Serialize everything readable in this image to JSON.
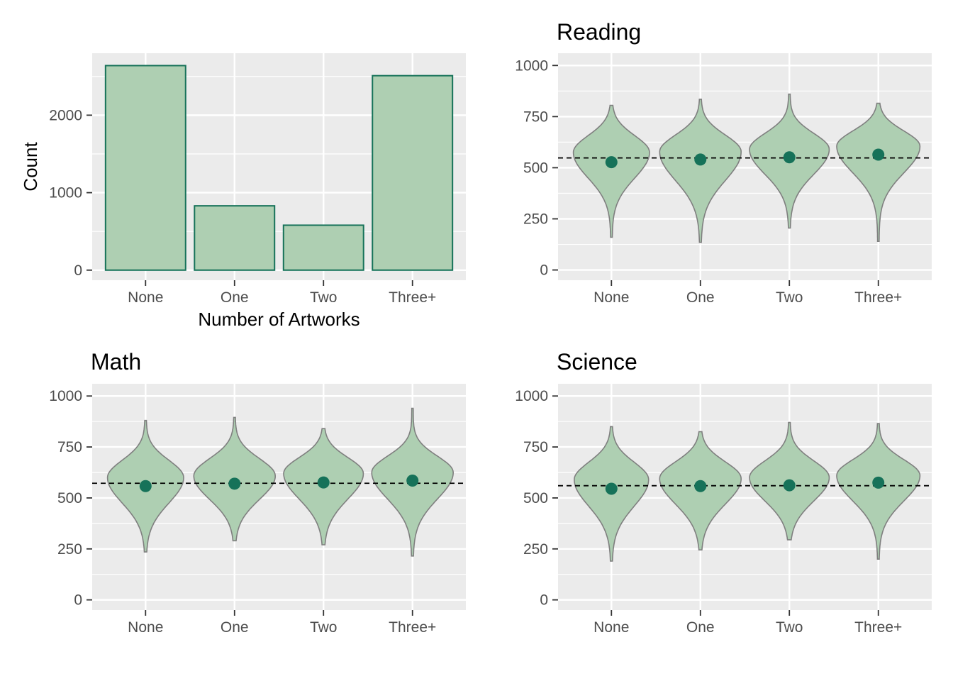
{
  "colors": {
    "panel_bg": "#ebebeb",
    "grid": "#ffffff",
    "fill": "#aecfb2",
    "bar_stroke": "#167259",
    "violin_stroke": "#7f7f7f",
    "mean_dot": "#167259",
    "ref_line": "#000000",
    "tick": "#333333"
  },
  "chart_data": [
    {
      "type": "bar",
      "title": "",
      "xlabel": "Number of Artworks",
      "ylabel": "Count",
      "categories": [
        "None",
        "One",
        "Two",
        "Three+"
      ],
      "values": [
        2640,
        830,
        580,
        2510
      ],
      "ylim": [
        -130,
        2800
      ],
      "yticks": [
        0,
        1000,
        2000
      ],
      "ytick_labels": [
        "0",
        "1000",
        "2000"
      ],
      "grid": true
    },
    {
      "type": "violin",
      "title": "Reading",
      "xlabel": "",
      "ylabel": "",
      "categories": [
        "None",
        "One",
        "Two",
        "Three+"
      ],
      "ylim": [
        -50,
        1060
      ],
      "yticks": [
        0,
        250,
        500,
        750,
        1000
      ],
      "ytick_labels": [
        "0",
        "250",
        "500",
        "750",
        "1000"
      ],
      "reference_line": 548,
      "series": [
        {
          "category": "None",
          "mean": 527,
          "min": 160,
          "max": 805,
          "mode": 575,
          "half_width": 0.42,
          "sd": [
            125,
            82
          ]
        },
        {
          "category": "One",
          "mean": 540,
          "min": 135,
          "max": 835,
          "mode": 578,
          "half_width": 0.45,
          "sd": [
            140,
            82
          ]
        },
        {
          "category": "Two",
          "mean": 551,
          "min": 205,
          "max": 860,
          "mode": 590,
          "half_width": 0.44,
          "sd": [
            122,
            78
          ]
        },
        {
          "category": "Three+",
          "mean": 564,
          "min": 140,
          "max": 815,
          "mode": 605,
          "half_width": 0.46,
          "sd": [
            130,
            75
          ]
        }
      ],
      "grid": true
    },
    {
      "type": "violin",
      "title": "Math",
      "xlabel": "",
      "ylabel": "",
      "categories": [
        "None",
        "One",
        "Two",
        "Three+"
      ],
      "ylim": [
        -50,
        1060
      ],
      "yticks": [
        0,
        250,
        500,
        750,
        1000
      ],
      "ytick_labels": [
        "0",
        "250",
        "500",
        "750",
        "1000"
      ],
      "reference_line": 572,
      "series": [
        {
          "category": "None",
          "mean": 558,
          "min": 235,
          "max": 880,
          "mode": 600,
          "half_width": 0.42,
          "sd": [
            125,
            85
          ]
        },
        {
          "category": "One",
          "mean": 570,
          "min": 290,
          "max": 895,
          "mode": 608,
          "half_width": 0.45,
          "sd": [
            115,
            85
          ]
        },
        {
          "category": "Two",
          "mean": 576,
          "min": 270,
          "max": 840,
          "mode": 620,
          "half_width": 0.44,
          "sd": [
            125,
            78
          ]
        },
        {
          "category": "Three+",
          "mean": 585,
          "min": 215,
          "max": 940,
          "mode": 625,
          "half_width": 0.45,
          "sd": [
            130,
            80
          ]
        }
      ],
      "grid": true
    },
    {
      "type": "violin",
      "title": "Science",
      "xlabel": "",
      "ylabel": "",
      "categories": [
        "None",
        "One",
        "Two",
        "Three+"
      ],
      "ylim": [
        -50,
        1060
      ],
      "yticks": [
        0,
        250,
        500,
        750,
        1000
      ],
      "ytick_labels": [
        "0",
        "250",
        "500",
        "750",
        "1000"
      ],
      "reference_line": 560,
      "series": [
        {
          "category": "None",
          "mean": 545,
          "min": 190,
          "max": 850,
          "mode": 590,
          "half_width": 0.41,
          "sd": [
            130,
            85
          ]
        },
        {
          "category": "One",
          "mean": 558,
          "min": 245,
          "max": 825,
          "mode": 595,
          "half_width": 0.45,
          "sd": [
            125,
            82
          ]
        },
        {
          "category": "Two",
          "mean": 562,
          "min": 295,
          "max": 870,
          "mode": 600,
          "half_width": 0.44,
          "sd": [
            115,
            82
          ]
        },
        {
          "category": "Three+",
          "mean": 575,
          "min": 200,
          "max": 865,
          "mode": 610,
          "half_width": 0.46,
          "sd": [
            125,
            78
          ]
        }
      ],
      "grid": true
    }
  ]
}
